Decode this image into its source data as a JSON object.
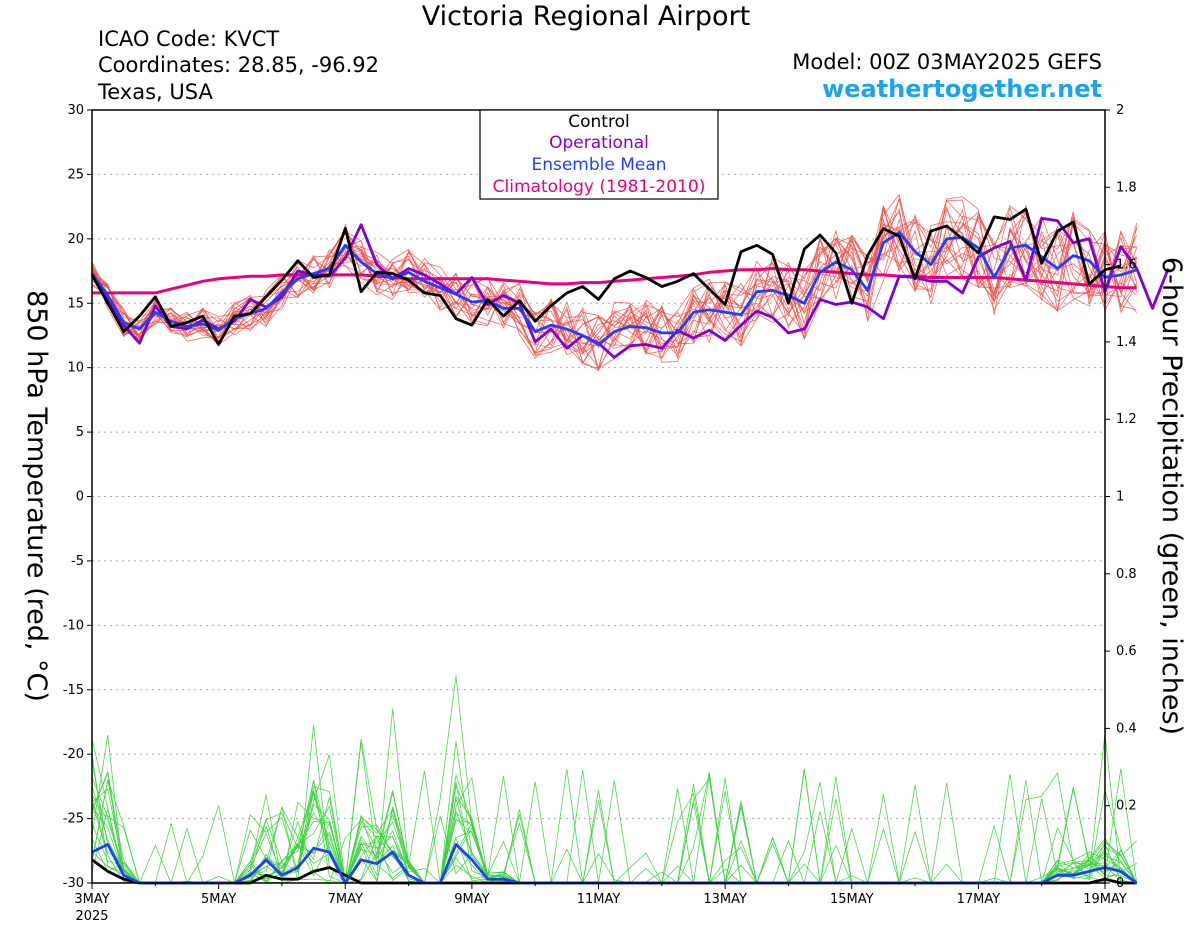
{
  "header": {
    "title": "Victoria Regional Airport",
    "icao": "ICAO Code: KVCT",
    "coords": "Coordinates: 28.85, -96.92",
    "region": "Texas, USA",
    "model": "Model: 00Z 03MAY2025 GEFS",
    "site": "weathertogether.net"
  },
  "colors": {
    "control": "#000000",
    "operational": "#7f00d4",
    "mean": "#1f3fff",
    "climatology": "#e8007f",
    "members_temp": "#f0504a",
    "members_precip": "#3ad13a",
    "site": "#1aa3f0"
  },
  "chart_data": {
    "type": "line",
    "title": "Victoria Regional Airport",
    "ylabel": "850 hPa Temperature (red, °C)",
    "y2label": "6-hour Precipitation (green, inches)",
    "xlabel": "",
    "x_ticks": [
      "3MAY",
      "5MAY",
      "7MAY",
      "9MAY",
      "11MAY",
      "13MAY",
      "15MAY",
      "17MAY",
      "19MAY"
    ],
    "x_year": "2025",
    "x_range_days": [
      0,
      16
    ],
    "ylim": [
      -30,
      30
    ],
    "y_ticks": [
      30,
      25,
      20,
      15,
      10,
      5,
      0,
      -5,
      -10,
      -15,
      -20,
      -25,
      -30
    ],
    "y2lim": [
      0,
      2
    ],
    "y2_ticks": [
      "2",
      "1.8",
      "1.6",
      "1.4",
      "1.2",
      "1",
      "0.8",
      "0.6",
      "0.4",
      "0.2",
      "0"
    ],
    "grid": true,
    "legend_position": "top-center",
    "legend": [
      "Control",
      "Operational",
      "Ensemble Mean",
      "Climatology (1981-2010)"
    ],
    "step_hours": 6,
    "series": [
      {
        "name": "Control",
        "axis": "temperature",
        "values": [
          17.2,
          15.0,
          12.8,
          14.0,
          15.5,
          13.2,
          13.5,
          14.0,
          11.8,
          14.0,
          14.2,
          15.5,
          16.8,
          18.3,
          17.0,
          17.2,
          20.8,
          15.9,
          17.4,
          17.3,
          16.8,
          15.8,
          15.6,
          13.8,
          13.3,
          15.3,
          14.0,
          15.2,
          13.6,
          14.8,
          15.8,
          16.3,
          15.3,
          16.9,
          17.5,
          17.0,
          16.3,
          16.7,
          17.3,
          16.1,
          14.9,
          19.0,
          19.5,
          18.8,
          15.0,
          19.2,
          20.3,
          18.9,
          15.0,
          18.7,
          20.8,
          20.2,
          16.9,
          20.6,
          21.0,
          20.0,
          18.9,
          21.7,
          21.5,
          22.3,
          18.1,
          20.6,
          21.3,
          16.5,
          17.6,
          17.9
        ]
      },
      {
        "name": "Operational",
        "axis": "temperature",
        "values": [
          17.3,
          15.2,
          13.3,
          11.9,
          14.8,
          13.2,
          13.0,
          13.7,
          13.0,
          13.6,
          15.3,
          14.7,
          15.5,
          17.5,
          17.2,
          17.1,
          18.5,
          21.1,
          18.0,
          16.9,
          17.7,
          17.2,
          16.5,
          15.7,
          17.0,
          14.9,
          15.6,
          15.0,
          12.0,
          13.0,
          11.5,
          12.5,
          11.9,
          10.8,
          11.7,
          11.8,
          11.5,
          12.9,
          12.3,
          12.9,
          12.1,
          13.3,
          14.4,
          13.9,
          12.7,
          13.0,
          15.3,
          14.9,
          15.1,
          14.7,
          13.8,
          17.1,
          17.0,
          16.7,
          16.7,
          15.8,
          18.6,
          19.3,
          19.8,
          16.8,
          21.6,
          21.4,
          19.7,
          20.0,
          15.9,
          19.4,
          17.7,
          14.6,
          17.7
        ]
      },
      {
        "name": "Ensemble Mean",
        "axis": "temperature",
        "values": [
          17.3,
          15.6,
          13.5,
          13.0,
          14.3,
          13.6,
          13.2,
          13.4,
          12.9,
          13.8,
          14.2,
          14.6,
          15.8,
          16.9,
          17.3,
          17.7,
          19.5,
          18.2,
          17.3,
          16.9,
          17.4,
          16.7,
          16.2,
          15.7,
          15.1,
          15.2,
          14.6,
          14.6,
          12.8,
          13.3,
          13.0,
          12.5,
          11.8,
          12.8,
          13.2,
          13.1,
          12.7,
          12.7,
          14.3,
          14.5,
          14.3,
          14.1,
          15.9,
          16.0,
          15.6,
          15.0,
          17.4,
          18.2,
          17.6,
          16.0,
          19.7,
          20.5,
          19.0,
          18.0,
          20.0,
          20.1,
          19.3,
          17.0,
          19.3,
          19.5,
          18.6,
          17.7,
          18.7,
          18.3,
          17.0,
          17.2,
          17.6
        ]
      },
      {
        "name": "Climatology (1981-2010)",
        "axis": "temperature",
        "values": [
          15.8,
          15.8,
          15.8,
          15.8,
          15.8,
          16.1,
          16.4,
          16.7,
          16.9,
          17.0,
          17.1,
          17.1,
          17.2,
          17.2,
          17.2,
          17.2,
          17.2,
          17.2,
          17.1,
          17.0,
          16.9,
          16.9,
          16.9,
          16.9,
          16.9,
          16.9,
          16.8,
          16.7,
          16.6,
          16.5,
          16.5,
          16.6,
          16.6,
          16.7,
          16.8,
          16.9,
          17.0,
          17.1,
          17.2,
          17.4,
          17.5,
          17.6,
          17.6,
          17.7,
          17.6,
          17.6,
          17.5,
          17.4,
          17.3,
          17.2,
          17.2,
          17.1,
          17.1,
          17.0,
          17.0,
          17.0,
          17.0,
          17.0,
          16.9,
          16.8,
          16.7,
          16.6,
          16.5,
          16.4,
          16.3,
          16.2,
          16.2
        ]
      },
      {
        "name": "Ensemble Mean",
        "axis": "precipitation",
        "values": [
          0.08,
          0.1,
          0.02,
          0.0,
          0.0,
          0.0,
          0.0,
          0.0,
          0.0,
          0.0,
          0.02,
          0.06,
          0.02,
          0.04,
          0.09,
          0.08,
          0.0,
          0.06,
          0.05,
          0.08,
          0.02,
          0.0,
          0.0,
          0.1,
          0.06,
          0.01,
          0.01,
          0.0,
          0.0,
          0.0,
          0.0,
          0.0,
          0.0,
          0.0,
          0.0,
          0.0,
          0.0,
          0.0,
          0.0,
          0.0,
          0.0,
          0.0,
          0.0,
          0.0,
          0.0,
          0.0,
          0.0,
          0.0,
          0.0,
          0.0,
          0.0,
          0.0,
          0.0,
          0.0,
          0.0,
          0.0,
          0.0,
          0.0,
          0.0,
          0.0,
          0.0,
          0.02,
          0.02,
          0.03,
          0.04,
          0.03,
          0.0
        ]
      },
      {
        "name": "Control",
        "axis": "precipitation",
        "values": [
          0.06,
          0.03,
          0.01,
          0.0,
          0.0,
          0.0,
          0.0,
          0.0,
          0.0,
          0.0,
          0.0,
          0.02,
          0.01,
          0.01,
          0.03,
          0.04,
          0.02,
          0.0,
          0.0,
          0.0,
          0.0,
          0.0,
          0.0,
          0.0,
          0.0,
          0.0,
          0.0,
          0.0,
          0.0,
          0.0,
          0.0,
          0.0,
          0.0,
          0.0,
          0.0,
          0.0,
          0.0,
          0.0,
          0.0,
          0.0,
          0.0,
          0.0,
          0.0,
          0.0,
          0.0,
          0.0,
          0.0,
          0.0,
          0.0,
          0.0,
          0.0,
          0.0,
          0.0,
          0.0,
          0.0,
          0.0,
          0.0,
          0.0,
          0.0,
          0.0,
          0.0,
          0.0,
          0.0,
          0.0,
          0.01,
          0.0,
          0.0
        ]
      }
    ]
  }
}
